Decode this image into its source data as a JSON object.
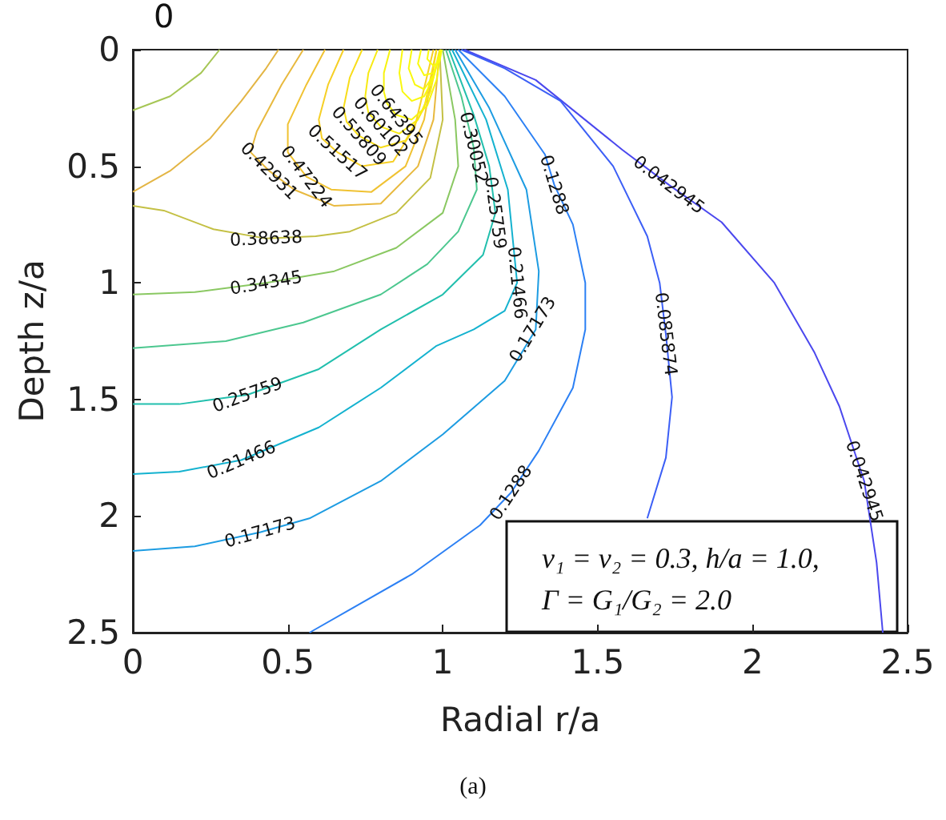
{
  "chart_data": {
    "type": "line",
    "xlabel": "Radial r/a",
    "ylabel": "Depth z/a",
    "xlim": [
      0,
      2.5
    ],
    "xticks": [
      0,
      0.5,
      1,
      1.5,
      2,
      2.5
    ],
    "ylim": [
      2.5,
      0
    ],
    "yticks": [
      0,
      0.5,
      1,
      1.5,
      2,
      2.5
    ],
    "series": [
      {
        "color": "#4b48ee",
        "x": [
          1.07,
          1.3,
          1.58,
          1.73,
          1.9,
          2.07,
          2.2,
          2.28,
          2.36,
          2.4,
          2.42
        ],
        "values": [
          0,
          0.13,
          0.43,
          0.58,
          0.74,
          1.0,
          1.3,
          1.53,
          1.85,
          2.2,
          2.5
        ]
      },
      {
        "color": "#3c5ff6",
        "x": [
          1.06,
          1.2,
          1.38,
          1.55,
          1.66,
          1.7,
          1.72,
          1.74,
          1.72,
          1.66
        ],
        "values": [
          0,
          0.08,
          0.22,
          0.5,
          0.8,
          1.0,
          1.22,
          1.49,
          1.75,
          2.01
        ]
      },
      {
        "color": "#2c80f4",
        "x": [
          1.05,
          1.2,
          1.33,
          1.36,
          1.42,
          1.46,
          1.46,
          1.42,
          1.31,
          1.22,
          1.12,
          0.9,
          0.57
        ],
        "values": [
          0,
          0.2,
          0.45,
          0.58,
          0.75,
          1.0,
          1.2,
          1.45,
          1.72,
          1.9,
          2.04,
          2.25,
          2.5
        ]
      },
      {
        "color": "#1d9ce2",
        "x": [
          1.04,
          1.15,
          1.27,
          1.31,
          1.3,
          1.2,
          1.0,
          0.8,
          0.57,
          0.41,
          0.2,
          0
        ],
        "values": [
          0,
          0.25,
          0.6,
          0.95,
          1.2,
          1.42,
          1.65,
          1.85,
          2.01,
          2.07,
          2.13,
          2.15
        ]
      },
      {
        "color": "#14b2cf",
        "x": [
          1.03,
          1.14,
          1.21,
          1.24,
          1.2,
          1.1,
          0.98,
          0.8,
          0.6,
          0.35,
          0.15,
          0
        ],
        "values": [
          0,
          0.3,
          0.6,
          1.0,
          1.12,
          1.2,
          1.27,
          1.45,
          1.62,
          1.76,
          1.81,
          1.82
        ]
      },
      {
        "color": "#21bfad",
        "x": [
          1.02,
          1.1,
          1.15,
          1.17,
          1.13,
          1.0,
          0.8,
          0.6,
          0.37,
          0.15,
          0
        ],
        "values": [
          0,
          0.28,
          0.5,
          0.7,
          0.88,
          1.05,
          1.2,
          1.37,
          1.48,
          1.52,
          1.52
        ]
      },
      {
        "color": "#4cc78f",
        "x": [
          1.01,
          1.06,
          1.1,
          1.11,
          1.05,
          0.95,
          0.8,
          0.55,
          0.3,
          0
        ],
        "values": [
          0,
          0.2,
          0.42,
          0.6,
          0.78,
          0.92,
          1.05,
          1.17,
          1.25,
          1.28
        ]
      },
      {
        "color": "#8ac862",
        "x": [
          1.0,
          1.04,
          1.05,
          1.0,
          0.85,
          0.65,
          0.43,
          0.2,
          0
        ],
        "values": [
          0,
          0.3,
          0.5,
          0.7,
          0.85,
          0.95,
          1.0,
          1.04,
          1.05
        ]
      },
      {
        "color": "#c4c044",
        "x": [
          0.99,
          1.0,
          0.96,
          0.85,
          0.7,
          0.59,
          0.43,
          0.26,
          0.1,
          0
        ],
        "values": [
          0,
          0.3,
          0.55,
          0.7,
          0.78,
          0.8,
          0.81,
          0.77,
          0.69,
          0.67
        ]
      },
      {
        "color": "#a6c655",
        "x": [
          0,
          0.12,
          0.22,
          0.28
        ],
        "values": [
          0.26,
          0.2,
          0.1,
          0
        ]
      },
      {
        "color": "#e3b544",
        "x": [
          0,
          0.12,
          0.25,
          0.35,
          0.43,
          0.47
        ],
        "values": [
          0.61,
          0.52,
          0.38,
          0.22,
          0.08,
          0
        ]
      },
      {
        "color": "#e8b93e",
        "x": [
          0.55,
          0.48,
          0.4,
          0.38,
          0.44,
          0.52,
          0.65,
          0.8,
          0.92,
          0.97,
          0.99
        ],
        "values": [
          0,
          0.15,
          0.35,
          0.44,
          0.52,
          0.6,
          0.67,
          0.66,
          0.5,
          0.3,
          0
        ]
      },
      {
        "color": "#f0c232",
        "x": [
          0.62,
          0.56,
          0.5,
          0.5,
          0.56,
          0.64,
          0.77,
          0.88,
          0.94,
          0.98
        ],
        "values": [
          0,
          0.15,
          0.32,
          0.44,
          0.545,
          0.6,
          0.61,
          0.5,
          0.3,
          0
        ]
      },
      {
        "color": "#f6cf25",
        "x": [
          0.68,
          0.63,
          0.6,
          0.61,
          0.66,
          0.74,
          0.84,
          0.91,
          0.97
        ],
        "values": [
          0,
          0.15,
          0.3,
          0.38,
          0.44,
          0.5,
          0.48,
          0.33,
          0
        ]
      },
      {
        "color": "#f8dd1a",
        "x": [
          0.74,
          0.7,
          0.68,
          0.69,
          0.73,
          0.8,
          0.88,
          0.94,
          0.98
        ],
        "values": [
          0,
          0.12,
          0.25,
          0.31,
          0.37,
          0.42,
          0.39,
          0.25,
          0
        ]
      },
      {
        "color": "#f8ea12",
        "x": [
          0.79,
          0.76,
          0.75,
          0.76,
          0.8,
          0.86,
          0.92,
          0.96,
          0.99
        ],
        "values": [
          0,
          0.1,
          0.2,
          0.27,
          0.33,
          0.36,
          0.3,
          0.18,
          0
        ]
      },
      {
        "color": "#f7f30f",
        "x": [
          0.83,
          0.81,
          0.81,
          0.82,
          0.85,
          0.9,
          0.95,
          0.98,
          0.995
        ],
        "values": [
          0,
          0.1,
          0.18,
          0.23,
          0.28,
          0.3,
          0.24,
          0.13,
          0
        ]
      },
      {
        "color": "#f9f80e",
        "x": [
          0.87,
          0.86,
          0.87,
          0.9,
          0.94,
          0.97,
          0.995
        ],
        "values": [
          0,
          0.1,
          0.18,
          0.22,
          0.2,
          0.12,
          0
        ]
      },
      {
        "color": "#f9f90e",
        "x": [
          0.9,
          0.89,
          0.91,
          0.94,
          0.97,
          0.995
        ],
        "values": [
          0,
          0.08,
          0.15,
          0.17,
          0.11,
          0
        ]
      },
      {
        "color": "#f9fa0e",
        "x": [
          0.93,
          0.92,
          0.94,
          0.97,
          0.995
        ],
        "values": [
          0,
          0.06,
          0.11,
          0.1,
          0
        ]
      },
      {
        "color": "#f9fb0e",
        "x": [
          0.955,
          0.95,
          0.97,
          0.99,
          0.997
        ],
        "values": [
          0,
          0.04,
          0.07,
          0.05,
          0
        ]
      }
    ],
    "annotations": [
      {
        "text": "0.042945",
        "x": 1.73,
        "y": 0.58
      },
      {
        "text": "0.042945",
        "x": 2.36,
        "y": 1.85
      },
      {
        "text": "0.085874",
        "x": 1.72,
        "y": 1.22
      },
      {
        "text": "0.1288",
        "x": 1.36,
        "y": 0.58
      },
      {
        "text": "0.1288",
        "x": 1.22,
        "y": 1.9
      },
      {
        "text": "0.17173",
        "x": 1.29,
        "y": 1.2
      },
      {
        "text": "0.17173",
        "x": 0.41,
        "y": 2.07
      },
      {
        "text": "0.21466",
        "x": 1.24,
        "y": 1.0
      },
      {
        "text": "0.21466",
        "x": 0.35,
        "y": 1.76
      },
      {
        "text": "0.25759",
        "x": 1.17,
        "y": 0.7
      },
      {
        "text": "0.25759",
        "x": 0.37,
        "y": 1.48
      },
      {
        "text": "0.30052",
        "x": 1.1,
        "y": 0.42
      },
      {
        "text": "0.34345",
        "x": 0.43,
        "y": 1.0
      },
      {
        "text": "0.38638",
        "x": 0.43,
        "y": 0.81
      },
      {
        "text": "0.42931",
        "x": 0.44,
        "y": 0.52
      },
      {
        "text": "0.47224",
        "x": 0.56,
        "y": 0.545
      },
      {
        "text": "0.51517",
        "x": 0.66,
        "y": 0.44
      },
      {
        "text": "0.55809",
        "x": 0.73,
        "y": 0.37
      },
      {
        "text": "0.60102",
        "x": 0.8,
        "y": 0.33
      },
      {
        "text": "0.64395",
        "x": 0.85,
        "y": 0.28
      },
      "0",
      "ν₁ = ν₂ = 0.3, h/a = 1.0,",
      "Γ = G₁/G₂ = 2.0",
      "(a)"
    ]
  }
}
